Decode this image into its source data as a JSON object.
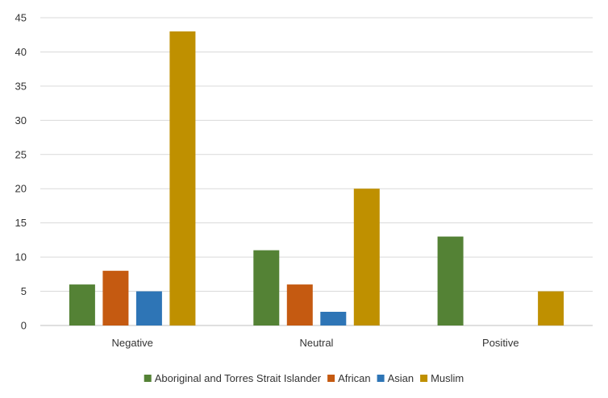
{
  "chart_data": {
    "type": "bar",
    "title": "",
    "xlabel": "",
    "ylabel": "",
    "categories": [
      "Negative",
      "Neutral",
      "Positive"
    ],
    "series": [
      {
        "name": "Aboriginal and Torres Strait Islander",
        "color": "#548235",
        "values": [
          6,
          11,
          13
        ]
      },
      {
        "name": "African",
        "color": "#C55A11",
        "values": [
          8,
          6,
          0
        ]
      },
      {
        "name": "Asian",
        "color": "#2E75B6",
        "values": [
          5,
          2,
          0
        ]
      },
      {
        "name": "Muslim",
        "color": "#BF9000",
        "values": [
          43,
          20,
          5
        ]
      }
    ],
    "ylim": [
      0,
      45
    ],
    "yticks": [
      0,
      5,
      10,
      15,
      20,
      25,
      30,
      35,
      40,
      45
    ],
    "grid": true,
    "legend_position": "bottom"
  }
}
